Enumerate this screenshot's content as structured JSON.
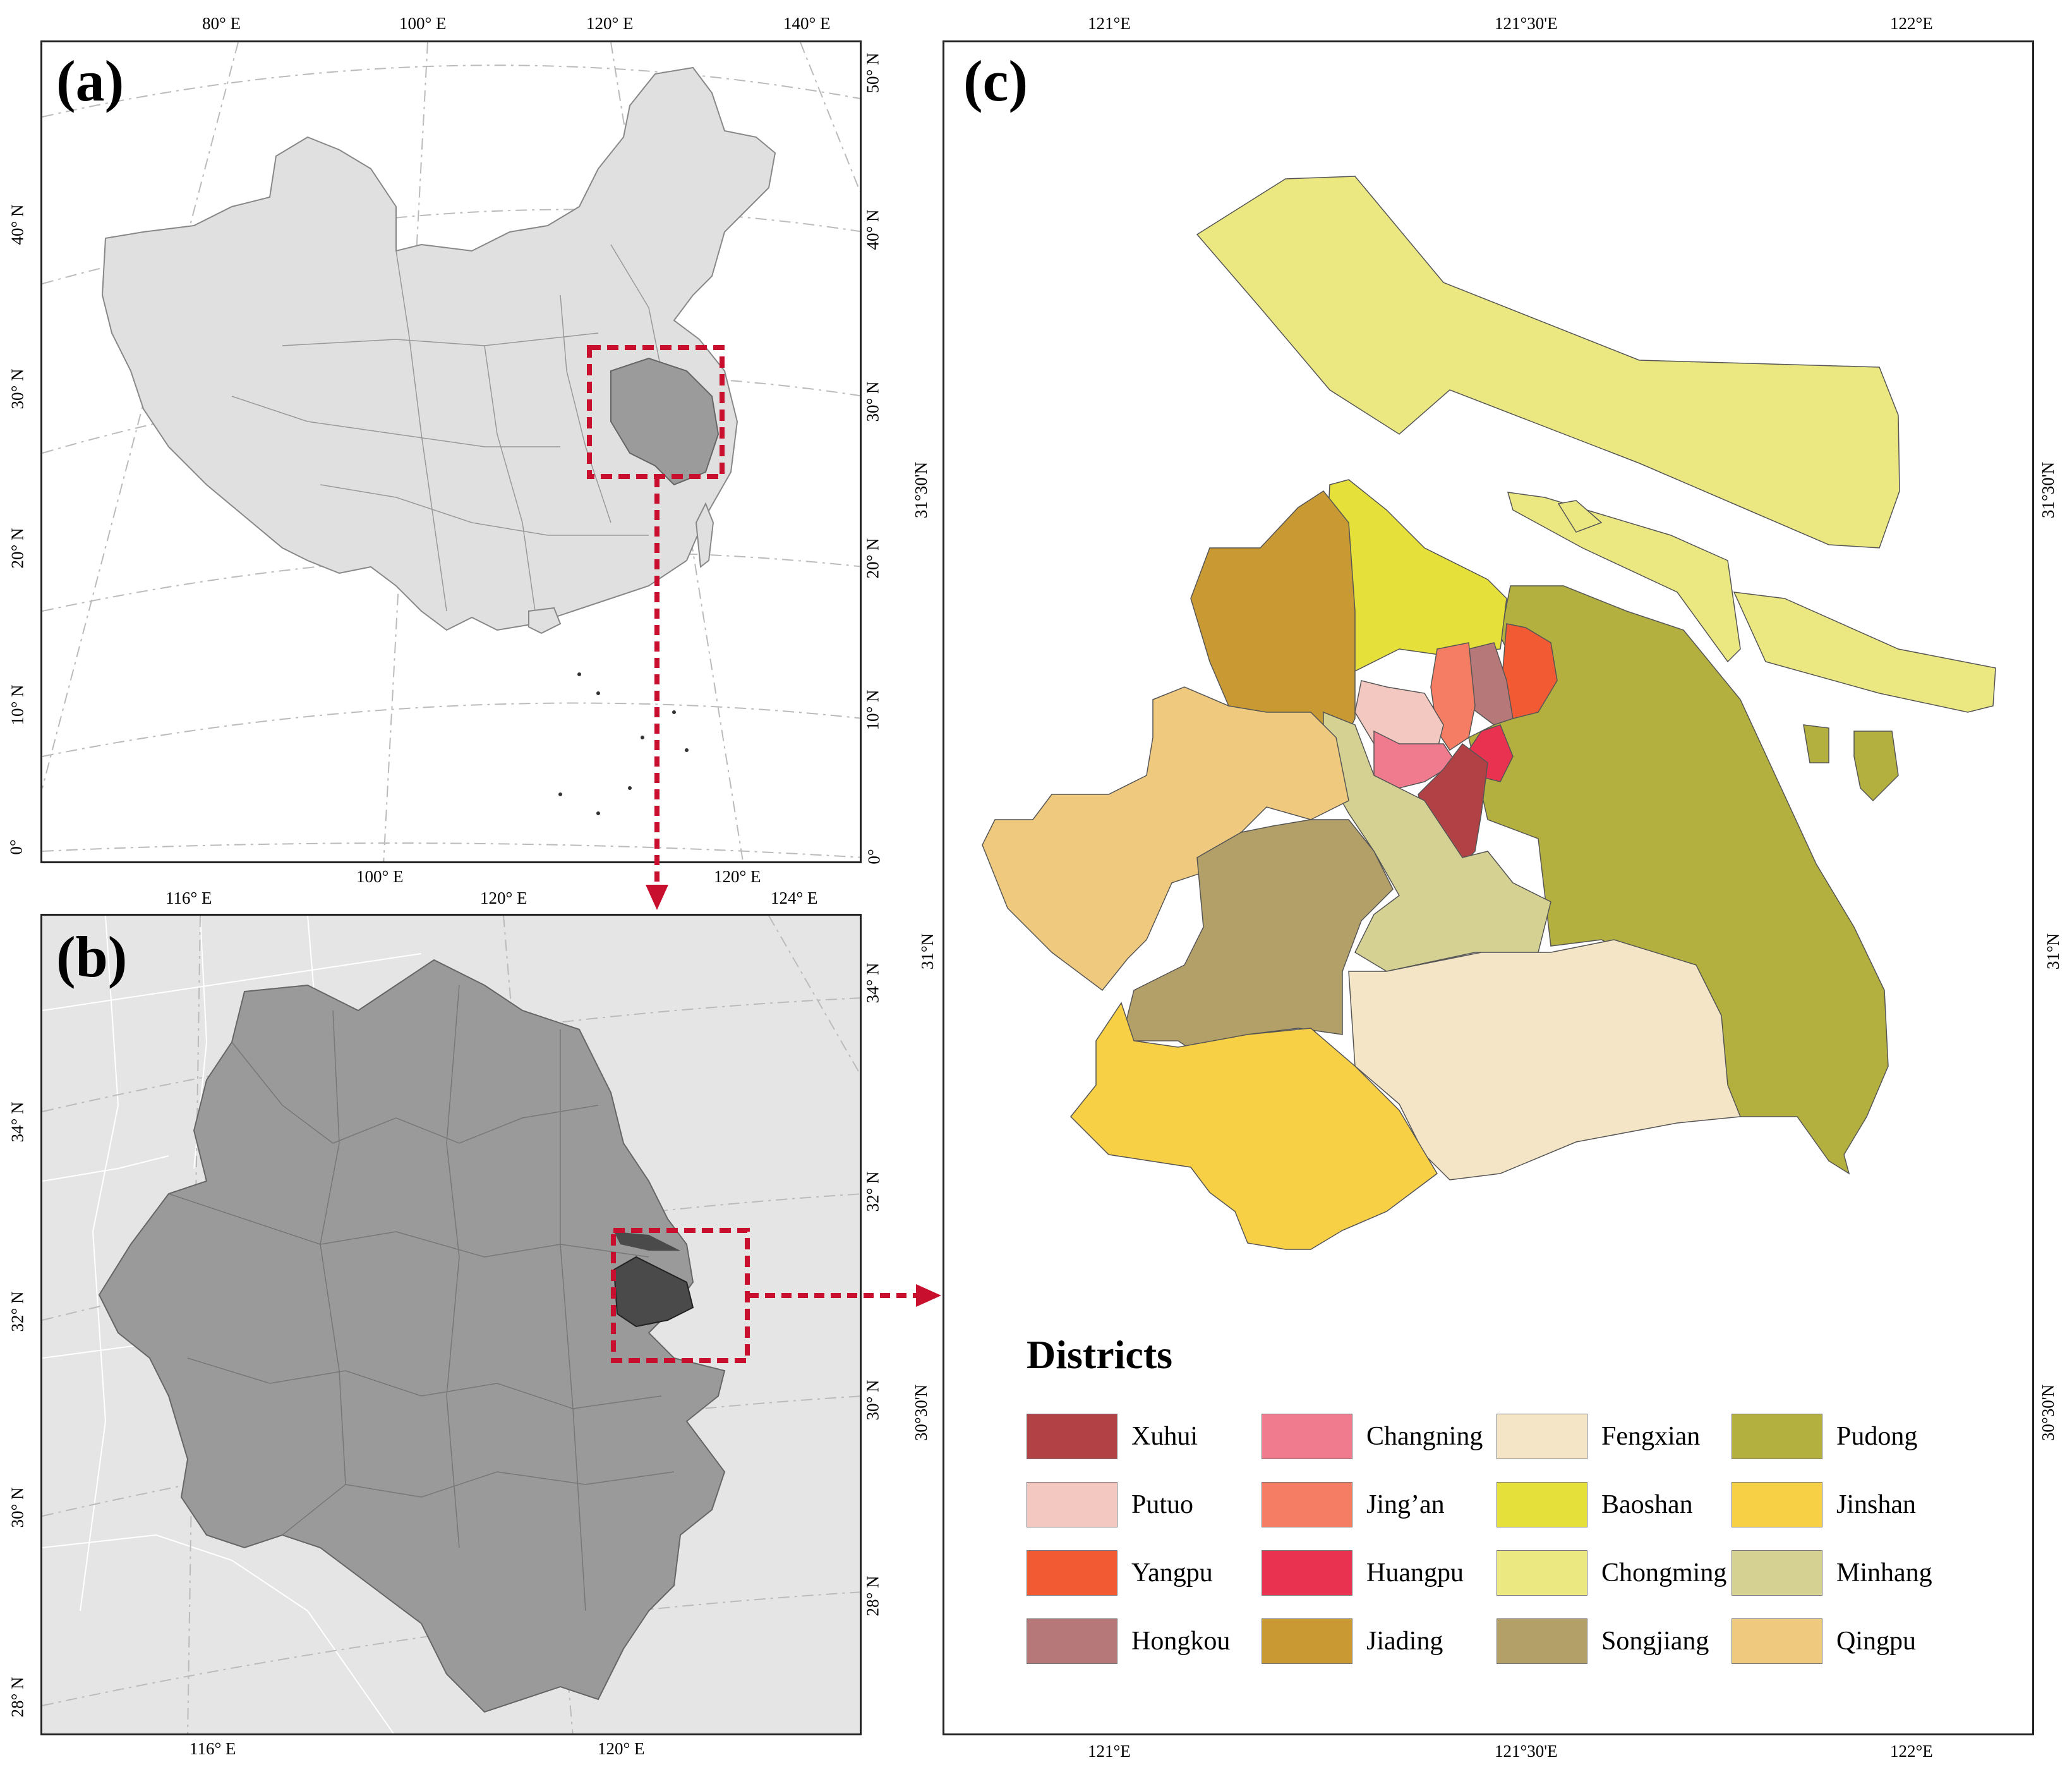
{
  "panels": {
    "a": {
      "label": "(a)"
    },
    "b": {
      "label": "(b)"
    },
    "c": {
      "label": "(c)"
    }
  },
  "ticks_a": {
    "top": [
      "80° E",
      "100° E",
      "120° E",
      "140° E"
    ],
    "bottom": [
      "100° E",
      "120° E"
    ],
    "left": [
      "40° N",
      "30° N",
      "20° N",
      "10° N",
      "0°"
    ],
    "right": [
      "50° N",
      "40° N",
      "30° N",
      "20° N",
      "10° N",
      "0°"
    ]
  },
  "ticks_b": {
    "top": [
      "116° E",
      "120° E",
      "124° E"
    ],
    "bottom": [
      "116° E",
      "120° E"
    ],
    "left": [
      "34° N",
      "32° N",
      "30° N",
      "28° N"
    ],
    "right": [
      "34° N",
      "32° N",
      "30° N",
      "28° N"
    ]
  },
  "ticks_c": {
    "top": [
      "121°E",
      "121°30'E",
      "122°E"
    ],
    "bottom": [
      "121°E",
      "121°30'E",
      "122°E"
    ],
    "left": [
      "31°30'N",
      "31°N",
      "30°30'N"
    ],
    "right": [
      "31°30'N",
      "31°N",
      "30°30'N"
    ]
  },
  "colors": {
    "xuhui": "#b24146",
    "changning": "#f07a8e",
    "fengxian": "#f3e5c6",
    "pudong": "#b3b03f",
    "putuo": "#f2c8c0",
    "jingan": "#f57d63",
    "baoshan": "#e6e03a",
    "jinshan": "#f8d046",
    "yangpu": "#f25a33",
    "huangpu": "#e9324f",
    "chongming": "#ebe882",
    "minhang": "#d5d193",
    "hongkou": "#b67878",
    "jiading": "#c99a34",
    "songjiang": "#b3a068",
    "qingpu": "#efc97d"
  },
  "legend": {
    "title": "Districts",
    "items": [
      {
        "name": "Xuhui",
        "color": "#b24146"
      },
      {
        "name": "Changning",
        "color": "#f07a8e"
      },
      {
        "name": "Fengxian",
        "color": "#f3e5c6"
      },
      {
        "name": "Pudong",
        "color": "#b3b03f"
      },
      {
        "name": "Putuo",
        "color": "#f2c8c0"
      },
      {
        "name": "Jing’an",
        "color": "#f57d63"
      },
      {
        "name": "Baoshan",
        "color": "#e6e03a"
      },
      {
        "name": "Jinshan",
        "color": "#f8d046"
      },
      {
        "name": "Yangpu",
        "color": "#f25a33"
      },
      {
        "name": "Huangpu",
        "color": "#e9324f"
      },
      {
        "name": "Chongming",
        "color": "#ebe882"
      },
      {
        "name": "Minhang",
        "color": "#d5d193"
      },
      {
        "name": "Hongkou",
        "color": "#b67878"
      },
      {
        "name": "Jiading",
        "color": "#c99a34"
      },
      {
        "name": "Songjiang",
        "color": "#b3a068"
      },
      {
        "name": "Qingpu",
        "color": "#efc97d"
      }
    ]
  }
}
